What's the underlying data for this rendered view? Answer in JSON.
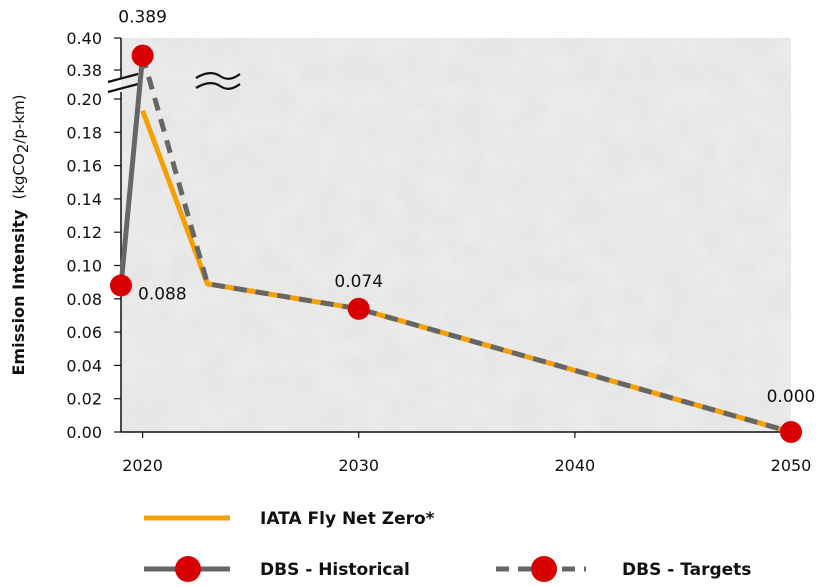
{
  "chart_data": {
    "type": "line",
    "ylabel_bold": "Emission Intensity",
    "ylabel_unit_pre": "(kgCO",
    "ylabel_unit_sub": "2",
    "ylabel_unit_post": "/p-km)",
    "x_ticks": [
      "2020",
      "2030",
      "2040",
      "2050"
    ],
    "y_ticks": [
      "0.00",
      "0.02",
      "0.04",
      "0.06",
      "0.08",
      "0.10",
      "0.12",
      "0.14",
      "0.16",
      "0.18",
      "0.20",
      "0.38",
      "0.40"
    ],
    "ylim": [
      0,
      0.4
    ],
    "axis_break": [
      0.2,
      0.38
    ],
    "grid": false,
    "legend_placement": "bottom",
    "series": [
      {
        "name": "IATA Fly Net Zero*",
        "color": "#F5A000",
        "style": "solid",
        "x": [
          2020,
          2023,
          2030,
          2050
        ],
        "y": [
          0.193,
          0.089,
          0.074,
          0.0
        ]
      },
      {
        "name": "DBS - Historical",
        "color": "#666666",
        "style": "solid",
        "marker_color": "#D60000",
        "x": [
          2019,
          2020
        ],
        "y": [
          0.088,
          0.389
        ]
      },
      {
        "name": "DBS - Targets",
        "color": "#666666",
        "style": "dashed",
        "marker_color": "#D60000",
        "x": [
          2020,
          2023,
          2030,
          2050
        ],
        "y": [
          0.389,
          0.089,
          0.074,
          0.0
        ]
      }
    ],
    "point_labels": [
      {
        "x": 2020,
        "y": 0.389,
        "text": "0.389"
      },
      {
        "x": 2019,
        "y": 0.088,
        "text": "0.088"
      },
      {
        "x": 2030,
        "y": 0.074,
        "text": "0.074"
      },
      {
        "x": 2050,
        "y": 0.0,
        "text": "0.000"
      }
    ]
  }
}
